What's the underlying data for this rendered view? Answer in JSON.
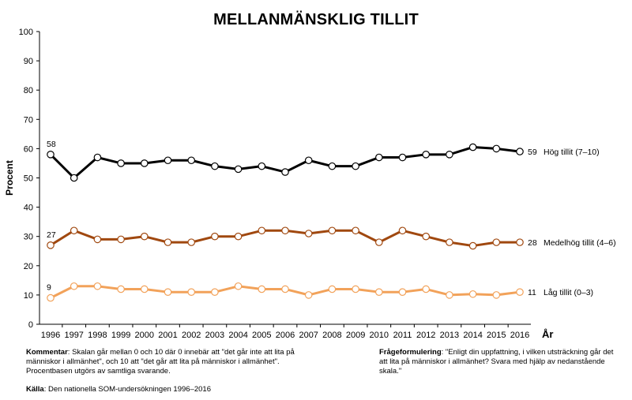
{
  "title": "MELLANMÄNSKLIG TILLIT",
  "chart_data": {
    "type": "line",
    "title": "MELLANMÄNSKLIG TILLIT",
    "xlabel": "År",
    "ylabel": "Procent",
    "ylim": [
      0,
      100
    ],
    "yticks": [
      0,
      10,
      20,
      30,
      40,
      50,
      60,
      70,
      80,
      90,
      100
    ],
    "grid": false,
    "x": [
      1996,
      1997,
      1998,
      1999,
      2000,
      2001,
      2002,
      2003,
      2004,
      2005,
      2006,
      2007,
      2008,
      2009,
      2010,
      2011,
      2012,
      2013,
      2014,
      2015,
      2016
    ],
    "series": [
      {
        "name": "Hög tillit (7–10)",
        "color": "#000000",
        "values": [
          58,
          50,
          57,
          55,
          55,
          56,
          56,
          54,
          53,
          54,
          52,
          56,
          54,
          54,
          57,
          57,
          58,
          58,
          60.5,
          60,
          59
        ],
        "first_label": "58",
        "last_label": "59"
      },
      {
        "name": "Medelhög tillit (4–6)",
        "color": "#a0480f",
        "values": [
          27,
          32,
          29,
          29,
          30,
          28,
          28,
          30,
          30,
          32,
          32,
          31,
          32,
          32,
          28,
          32,
          30,
          28,
          26.8,
          28,
          28
        ],
        "first_label": "27",
        "last_label": "28"
      },
      {
        "name": "Låg tillit (0–3)",
        "color": "#f2a25a",
        "values": [
          9,
          13,
          13,
          12,
          12,
          11,
          11,
          11,
          13,
          12,
          12,
          10,
          12,
          12,
          11,
          11,
          12,
          10,
          10.3,
          10,
          11
        ],
        "first_label": "9",
        "last_label": "11"
      }
    ]
  },
  "notes": {
    "comment_label": "Kommentar",
    "comment_text": ": Skalan går mellan 0 och 10 där 0 innebär att \"det går inte att lita på människor i allmänhet\", och 10 att \"det går att lita på människor i allmänhet\". Procentbasen utgörs av samtliga svarande.",
    "question_label": "Frågeformulering",
    "question_text": ": \"Enligt din uppfattning, i vilken utsträckning går det att lita på människor i allmänhet? Svara med hjälp av nedanstående skala.\"",
    "source_label": "Källa",
    "source_text": ": Den nationella SOM-undersökningen 1996–2016"
  }
}
